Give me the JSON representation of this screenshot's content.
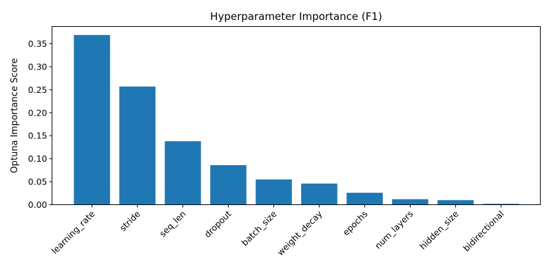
{
  "chart_data": {
    "type": "bar",
    "title": "Hyperparameter Importance (F1)",
    "xlabel": "",
    "ylabel": "Optuna Importance Score",
    "categories": [
      "learning_rate",
      "stride",
      "seq_len",
      "dropout",
      "batch_size",
      "weight_decay",
      "epochs",
      "num_layers",
      "hidden_size",
      "bidirectional"
    ],
    "values": [
      0.369,
      0.257,
      0.138,
      0.086,
      0.055,
      0.046,
      0.026,
      0.012,
      0.01,
      0.002
    ],
    "ylim": [
      0,
      0.3875
    ],
    "yticks": [
      0.0,
      0.05,
      0.1,
      0.15,
      0.2,
      0.25,
      0.3,
      0.35
    ],
    "ytick_labels": [
      "0.00",
      "0.05",
      "0.10",
      "0.15",
      "0.20",
      "0.25",
      "0.30",
      "0.35"
    ],
    "bar_color": "#1f77b4",
    "grid": false,
    "legend": "none"
  }
}
